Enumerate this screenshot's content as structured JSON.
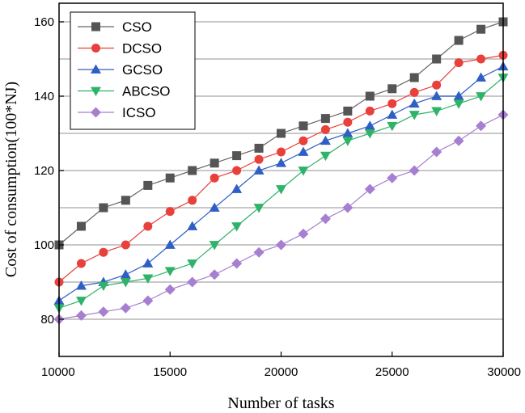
{
  "chart_data": {
    "type": "line",
    "title": "",
    "xlabel": "Number of tasks",
    "ylabel": "Cost of consumption(100*NJ)",
    "xlim": [
      10000,
      30000
    ],
    "ylim": [
      70,
      165
    ],
    "x_ticks": [
      10000,
      15000,
      20000,
      25000,
      30000
    ],
    "y_ticks": [
      80,
      100,
      120,
      140,
      160
    ],
    "y_grid": [
      80,
      90,
      100,
      110,
      120,
      130,
      140,
      150,
      160
    ],
    "grid": true,
    "legend_position": "top-left",
    "x": [
      10000,
      11000,
      12000,
      13000,
      14000,
      15000,
      16000,
      17000,
      18000,
      19000,
      20000,
      21000,
      22000,
      23000,
      24000,
      25000,
      26000,
      27000,
      28000,
      29000,
      30000
    ],
    "series": [
      {
        "name": "CSO",
        "marker": "square",
        "color": "#555555",
        "line_color": "#666666",
        "values": [
          100,
          105,
          110,
          112,
          116,
          118,
          120,
          122,
          124,
          126,
          130,
          132,
          134,
          136,
          140,
          142,
          145,
          150,
          155,
          158,
          160
        ]
      },
      {
        "name": "DCSO",
        "marker": "circle",
        "color": "#e8413c",
        "line_color": "#e8413c",
        "values": [
          90,
          95,
          98,
          100,
          105,
          109,
          112,
          118,
          120,
          123,
          125,
          128,
          131,
          133,
          136,
          138,
          141,
          143,
          149,
          150,
          151
        ]
      },
      {
        "name": "GCSO",
        "marker": "triangle-up",
        "color": "#2f5fc4",
        "line_color": "#2f5fc4",
        "values": [
          85,
          89,
          90,
          92,
          95,
          100,
          105,
          110,
          115,
          120,
          122,
          125,
          128,
          130,
          132,
          135,
          138,
          140,
          140,
          145,
          148
        ]
      },
      {
        "name": "ABCSO",
        "marker": "triangle-down",
        "color": "#2fb36a",
        "line_color": "#2fb36a",
        "values": [
          83,
          85,
          89,
          90,
          91,
          93,
          95,
          100,
          105,
          110,
          115,
          120,
          124,
          128,
          130,
          132,
          135,
          136,
          138,
          140,
          145
        ]
      },
      {
        "name": "ICSO",
        "marker": "diamond",
        "color": "#a77fd0",
        "line_color": "#a77fd0",
        "values": [
          80,
          81,
          82,
          83,
          85,
          88,
          90,
          92,
          95,
          98,
          100,
          103,
          107,
          110,
          115,
          118,
          120,
          125,
          128,
          132,
          135
        ]
      }
    ]
  }
}
